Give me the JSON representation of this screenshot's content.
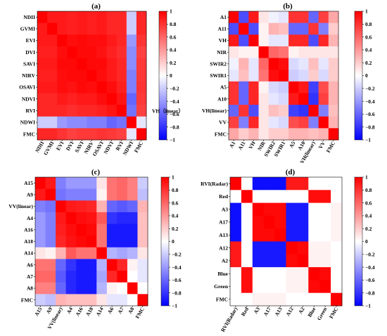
{
  "chart_data": [
    {
      "type": "heatmap",
      "title": "(a)",
      "labels": [
        "NDII",
        "GVMI",
        "EVI",
        "DVI",
        "SAVI",
        "NIRV",
        "OSAVI",
        "NDVI",
        "RVI",
        "NDWI",
        "FMC"
      ],
      "x_tick_labels": [
        "NDII",
        "GVMI",
        "EVI",
        "DVI",
        "SAVI",
        "NIRV",
        "OSAVI",
        "NDVI",
        "RVI",
        "NDWI",
        "FMC"
      ],
      "colorbar": {
        "min": -1,
        "max": 1,
        "ticks": [
          "1",
          "0.8",
          "0.6",
          "0.4",
          "0.2",
          "0",
          "−0.2",
          "−0.4",
          "−0.6",
          "−0.8",
          "−1"
        ]
      },
      "annotation": "VH（linear）",
      "matrix": [
        [
          1.0,
          0.9,
          0.9,
          0.88,
          0.9,
          0.88,
          0.9,
          0.85,
          0.85,
          -0.2,
          0.85
        ],
        [
          0.9,
          1.0,
          0.9,
          0.88,
          0.9,
          0.88,
          0.9,
          0.85,
          0.85,
          -0.2,
          0.85
        ],
        [
          0.9,
          0.9,
          1.0,
          0.95,
          0.97,
          0.95,
          0.95,
          0.9,
          0.85,
          -0.4,
          0.8
        ],
        [
          0.88,
          0.88,
          0.95,
          1.0,
          0.97,
          0.97,
          0.93,
          0.87,
          0.82,
          -0.45,
          0.75
        ],
        [
          0.9,
          0.9,
          0.97,
          0.97,
          1.0,
          0.97,
          0.97,
          0.9,
          0.85,
          -0.45,
          0.78
        ],
        [
          0.88,
          0.88,
          0.95,
          0.97,
          0.97,
          1.0,
          0.95,
          0.9,
          0.85,
          -0.5,
          0.78
        ],
        [
          0.9,
          0.9,
          0.95,
          0.93,
          0.97,
          0.95,
          1.0,
          0.95,
          0.88,
          -0.5,
          0.8
        ],
        [
          0.85,
          0.85,
          0.9,
          0.87,
          0.9,
          0.9,
          0.95,
          1.0,
          0.92,
          -0.6,
          0.78
        ],
        [
          0.85,
          0.85,
          0.85,
          0.82,
          0.85,
          0.85,
          0.88,
          0.92,
          1.0,
          -0.55,
          0.75
        ],
        [
          -0.2,
          -0.2,
          -0.4,
          -0.45,
          -0.45,
          -0.5,
          -0.5,
          -0.6,
          -0.55,
          1.0,
          -0.1
        ],
        [
          0.85,
          0.85,
          0.8,
          0.75,
          0.78,
          0.78,
          0.8,
          0.78,
          0.75,
          -0.1,
          1.0
        ]
      ]
    },
    {
      "type": "heatmap",
      "title": "(b)",
      "labels": [
        "A1",
        "A11",
        "VH",
        "NIR",
        "SWIR2",
        "SWIR1",
        "A5",
        "A10",
        "VH(linear)",
        "VV",
        "FMC"
      ],
      "x_tick_labels": [
        "A1",
        "A11",
        "VH",
        "NIR",
        "SWIR2",
        "SWIR1",
        "A5",
        "A10",
        "VH(linear)",
        "VV",
        "FMC"
      ],
      "colorbar": {
        "min": -1,
        "max": 1,
        "ticks": [
          "1",
          "0.8",
          "0.6",
          "0.4",
          "0.2",
          "0",
          "−0.2",
          "−0.4",
          "−0.6",
          "−0.8",
          "−1"
        ]
      },
      "matrix": [
        [
          1.0,
          -0.7,
          0.9,
          0.1,
          -0.05,
          -0.1,
          0.8,
          0.8,
          -0.6,
          0.75,
          0.35
        ],
        [
          -0.7,
          1.0,
          -0.7,
          0.05,
          0.3,
          0.25,
          -0.6,
          -0.6,
          0.8,
          -0.5,
          0.2
        ],
        [
          0.9,
          -0.7,
          1.0,
          0.05,
          -0.1,
          -0.1,
          0.85,
          0.85,
          -0.7,
          0.85,
          0.3
        ],
        [
          0.1,
          0.05,
          0.05,
          1.0,
          0.6,
          0.55,
          0.05,
          0.1,
          0.1,
          0.1,
          0.1
        ],
        [
          -0.05,
          0.3,
          -0.1,
          0.6,
          1.0,
          0.95,
          -0.15,
          -0.1,
          0.25,
          -0.1,
          0.2
        ],
        [
          -0.1,
          0.25,
          -0.1,
          0.55,
          0.95,
          1.0,
          -0.2,
          -0.15,
          0.2,
          -0.15,
          0.2
        ],
        [
          0.8,
          -0.6,
          0.85,
          0.05,
          -0.15,
          -0.2,
          1.0,
          0.9,
          -0.75,
          0.7,
          0.3
        ],
        [
          0.8,
          -0.6,
          0.85,
          0.1,
          -0.1,
          -0.15,
          0.9,
          1.0,
          -0.8,
          0.75,
          0.3
        ],
        [
          -0.6,
          0.8,
          -0.7,
          0.1,
          0.25,
          0.2,
          -0.75,
          -0.8,
          1.0,
          -0.5,
          0.25
        ],
        [
          0.75,
          -0.5,
          0.85,
          0.1,
          -0.1,
          -0.15,
          0.7,
          0.75,
          -0.5,
          1.0,
          0.3
        ],
        [
          0.35,
          0.2,
          0.3,
          0.1,
          0.2,
          0.2,
          0.3,
          0.3,
          0.25,
          0.3,
          1.0
        ]
      ]
    },
    {
      "type": "heatmap",
      "title": "(c)",
      "labels": [
        "A15",
        "A9",
        "VV(linear)",
        "A4",
        "A16",
        "A18",
        "A14",
        "A6",
        "A7",
        "A8",
        "FMC"
      ],
      "x_tick_labels": [
        "A15",
        "A9",
        "VV(linear)",
        "A4",
        "A16",
        "A18",
        "A14",
        "A6",
        "A7",
        "A8",
        "FMC"
      ],
      "colorbar": {
        "min": -1,
        "max": 1,
        "ticks": [
          "1",
          "0.8",
          "0.6",
          "0.4",
          "0.2",
          "0",
          "−0.2",
          "−0.4",
          "−0.6",
          "−0.8",
          "−1"
        ]
      },
      "matrix": [
        [
          1.0,
          0.9,
          -0.5,
          -0.4,
          -0.4,
          -0.4,
          0.1,
          0.55,
          0.6,
          0.5,
          -0.2
        ],
        [
          0.9,
          1.0,
          -0.55,
          -0.5,
          -0.5,
          -0.5,
          0.05,
          0.55,
          0.6,
          0.5,
          -0.25
        ],
        [
          -0.5,
          -0.55,
          1.0,
          0.9,
          0.88,
          0.85,
          0.3,
          -0.6,
          -0.65,
          -0.6,
          0.3
        ],
        [
          -0.4,
          -0.5,
          0.9,
          1.0,
          0.95,
          0.93,
          0.65,
          -0.8,
          -0.85,
          -0.85,
          0.25
        ],
        [
          -0.4,
          -0.5,
          0.88,
          0.95,
          1.0,
          0.97,
          0.55,
          -0.9,
          -0.9,
          -0.9,
          0.25
        ],
        [
          -0.4,
          -0.5,
          0.85,
          0.93,
          0.97,
          1.0,
          0.55,
          -0.9,
          -0.9,
          -0.9,
          0.25
        ],
        [
          0.1,
          0.05,
          0.3,
          0.65,
          0.55,
          0.55,
          1.0,
          -0.3,
          -0.35,
          -0.3,
          0.1
        ],
        [
          0.55,
          0.55,
          -0.6,
          -0.8,
          -0.9,
          -0.9,
          -0.3,
          1.0,
          0.85,
          0.05,
          -0.1
        ],
        [
          0.6,
          0.6,
          -0.65,
          -0.85,
          -0.9,
          -0.9,
          -0.35,
          0.85,
          1.0,
          0.0,
          -0.1
        ],
        [
          0.5,
          0.5,
          -0.6,
          -0.85,
          -0.9,
          -0.9,
          -0.3,
          0.05,
          0.0,
          1.0,
          0.0
        ],
        [
          -0.2,
          -0.25,
          0.3,
          0.25,
          0.25,
          0.25,
          0.1,
          -0.1,
          -0.1,
          0.0,
          1.0
        ]
      ]
    },
    {
      "type": "heatmap",
      "title": "(d)",
      "labels": [
        "RVI(Radar)",
        "Red",
        "A3",
        "A17",
        "A13",
        "A12",
        "A2",
        "Blue",
        "Green",
        "FMC"
      ],
      "x_tick_labels": [
        "RVI(Radar)",
        "Red",
        "A3",
        "A17",
        "A13",
        "A12",
        "A2",
        "Blue",
        "Green",
        "FMC"
      ],
      "colorbar": {
        "min": -1,
        "max": 1,
        "ticks": [
          "1",
          "0.8",
          "0.6",
          "0.4",
          "0.2",
          "0",
          "−0.2",
          "−0.4",
          "−0.6",
          "−0.8",
          "−1"
        ]
      },
      "matrix": [
        [
          1.0,
          0.0,
          -0.95,
          -0.95,
          -0.95,
          0.9,
          0.9,
          0.0,
          0.0,
          0.0
        ],
        [
          0.0,
          1.0,
          0.0,
          0.0,
          0.0,
          0.0,
          0.0,
          0.95,
          0.95,
          0.0
        ],
        [
          -0.95,
          0.0,
          1.0,
          0.97,
          0.97,
          -0.9,
          -0.9,
          0.0,
          0.0,
          0.05
        ],
        [
          -0.95,
          0.0,
          0.97,
          1.0,
          0.97,
          -0.9,
          -0.9,
          0.0,
          0.0,
          0.05
        ],
        [
          -0.95,
          0.0,
          0.97,
          0.97,
          1.0,
          -0.9,
          -0.9,
          0.0,
          0.0,
          0.05
        ],
        [
          0.9,
          0.0,
          -0.9,
          -0.9,
          -0.9,
          1.0,
          0.97,
          0.05,
          0.05,
          0.0
        ],
        [
          0.9,
          0.0,
          -0.9,
          -0.9,
          -0.9,
          0.97,
          1.0,
          0.05,
          0.05,
          0.0
        ],
        [
          0.0,
          0.95,
          0.0,
          0.0,
          0.0,
          0.05,
          0.05,
          1.0,
          0.97,
          0.0
        ],
        [
          0.0,
          0.95,
          0.0,
          0.0,
          0.0,
          0.05,
          0.05,
          0.97,
          1.0,
          0.0
        ],
        [
          0.0,
          0.0,
          0.05,
          0.05,
          0.05,
          0.0,
          0.0,
          0.0,
          0.0,
          1.0
        ]
      ]
    }
  ]
}
